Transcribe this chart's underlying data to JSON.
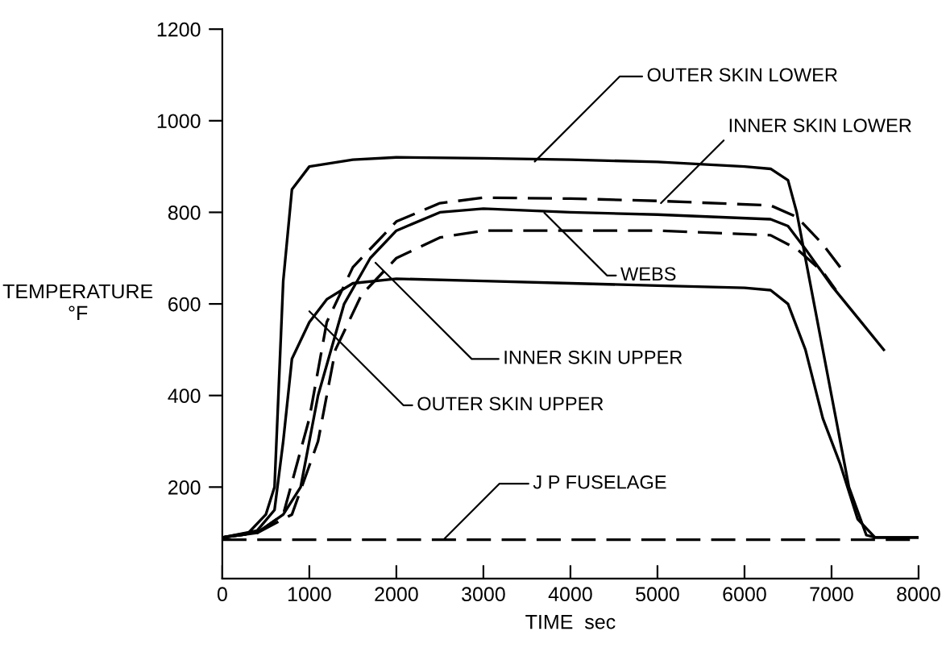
{
  "chart_data": {
    "type": "line",
    "xlabel": "TIME  sec",
    "ylabel": "TEMPERATURE\n°F",
    "xlim": [
      0,
      8000
    ],
    "ylim": [
      0,
      1200
    ],
    "xticks": [
      0,
      1000,
      2000,
      3000,
      4000,
      5000,
      6000,
      7000,
      8000
    ],
    "yticks": [
      200,
      400,
      600,
      800,
      1000,
      1200
    ],
    "grid": false,
    "legend": false,
    "marker": "none",
    "series": [
      {
        "color": "#000000",
        "line_style": "solid",
        "x": [
          0,
          300,
          500,
          600,
          700,
          800,
          1000,
          1500,
          2000,
          3000,
          4000,
          5000,
          6000,
          6300,
          6500,
          6600,
          6800,
          7000,
          7200,
          7400,
          7500,
          8000
        ],
        "values": [
          90,
          100,
          140,
          200,
          650,
          850,
          900,
          915,
          920,
          918,
          915,
          910,
          900,
          895,
          870,
          800,
          600,
          400,
          200,
          95,
          90,
          90
        ]
      },
      {
        "color": "#000000",
        "line_style": "dashed",
        "x": [
          0,
          400,
          700,
          1000,
          1200,
          1500,
          2000,
          2500,
          3000,
          4000,
          5000,
          6300,
          6600,
          6900,
          7100
        ],
        "values": [
          90,
          100,
          140,
          350,
          560,
          680,
          780,
          820,
          832,
          830,
          825,
          815,
          790,
          730,
          680
        ]
      },
      {
        "color": "#000000",
        "line_style": "solid",
        "x": [
          0,
          400,
          700,
          900,
          1100,
          1400,
          1700,
          2000,
          2500,
          3000,
          4000,
          5000,
          6300,
          6500,
          6700,
          7000,
          7300,
          7600
        ],
        "values": [
          90,
          100,
          140,
          200,
          400,
          600,
          700,
          760,
          800,
          808,
          800,
          795,
          785,
          770,
          720,
          640,
          570,
          500
        ]
      },
      {
        "color": "#000000",
        "line_style": "dashed",
        "x": [
          0,
          400,
          800,
          1100,
          1300,
          1600,
          2000,
          2500,
          3000,
          4000,
          5000,
          6300,
          6600,
          6900,
          7050
        ],
        "values": [
          90,
          100,
          140,
          300,
          500,
          620,
          700,
          745,
          760,
          760,
          760,
          750,
          720,
          670,
          630
        ]
      },
      {
        "color": "#000000",
        "line_style": "solid",
        "x": [
          0,
          400,
          600,
          700,
          800,
          1000,
          1200,
          1500,
          2000,
          3000,
          4000,
          5000,
          6000,
          6300,
          6500,
          6700,
          6900,
          7100,
          7300,
          7500,
          8000
        ],
        "values": [
          90,
          105,
          150,
          300,
          480,
          560,
          610,
          645,
          655,
          650,
          645,
          640,
          635,
          630,
          600,
          500,
          350,
          250,
          130,
          90,
          90
        ]
      },
      {
        "color": "#000000",
        "line_style": "dashed",
        "x": [
          0,
          8000
        ],
        "values": [
          85,
          85
        ]
      }
    ],
    "annotations": [
      {
        "text": "OUTER SKIN LOWER",
        "x": 3590,
        "y": 911
      },
      {
        "text": "INNER SKIN LOWER",
        "x": 5040,
        "y": 820
      },
      {
        "text": "WEBS",
        "x": 3700,
        "y": 799
      },
      {
        "text": "INNER SKIN UPPER",
        "x": 1760,
        "y": 690
      },
      {
        "text": "OUTER SKIN UPPER",
        "x": 1000,
        "y": 584
      },
      {
        "text": "J P FUSELAGE",
        "x": 2540,
        "y": 85
      }
    ]
  }
}
